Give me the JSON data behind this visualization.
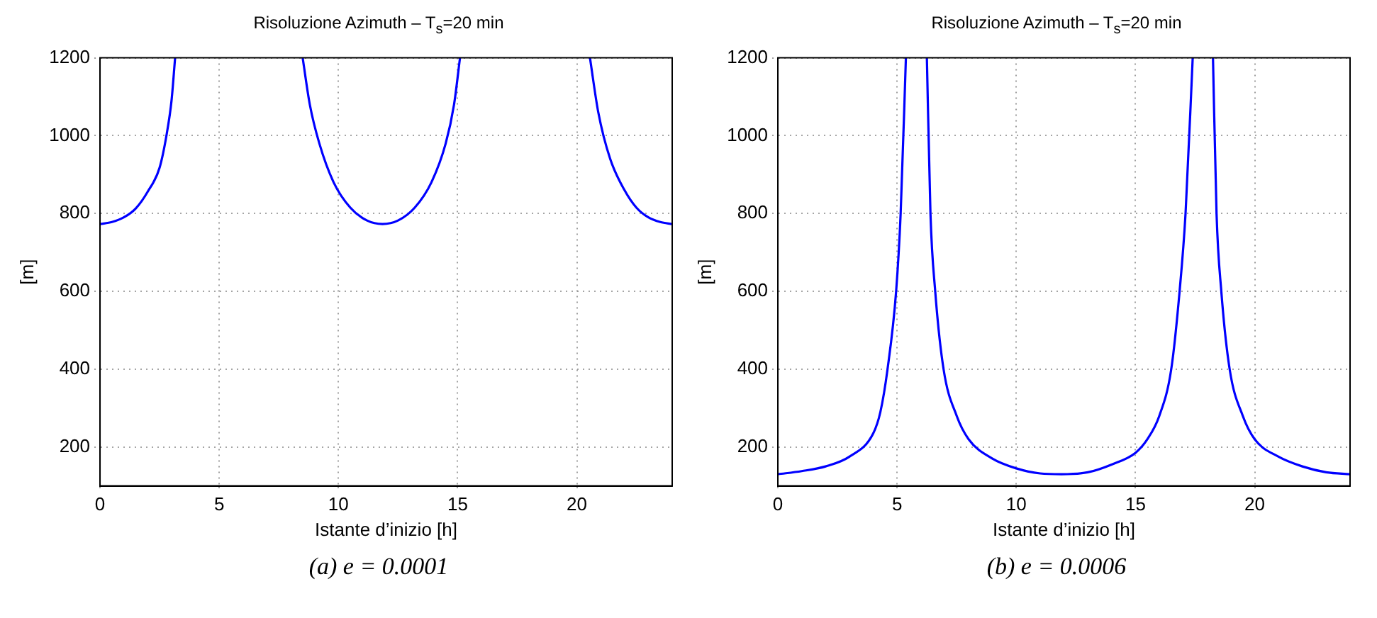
{
  "chart_data": [
    {
      "type": "line",
      "title": "Risoluzione Azimuth – T$_{s}$=20 min",
      "xlabel": "Istante d’inizio [h]",
      "ylabel": "[m]",
      "xlim": [
        0,
        24
      ],
      "xticks": [
        0,
        5,
        10,
        15,
        20
      ],
      "ylim": [
        100,
        1200
      ],
      "yticks": [
        200,
        400,
        600,
        800,
        1000,
        1200
      ],
      "grid": true,
      "legend": false,
      "marker": "none",
      "line_style": "solid",
      "annotations": [
        "(a) e = 0.0001"
      ],
      "series": [
        {
          "color": "#0000ff",
          "x": [
            0,
            0.5,
            1,
            1.5,
            2,
            2.5,
            2.8,
            3,
            3.15
          ],
          "values": [
            773,
            778,
            790,
            813,
            856,
            918,
            1005,
            1090,
            1200
          ]
        },
        {
          "color": "#0000ff",
          "x": [
            8.5,
            8.8,
            9.2,
            9.8,
            10.5,
            11.2,
            11.85,
            12.5,
            13.2,
            13.9,
            14.5,
            14.85,
            15.1
          ],
          "values": [
            1200,
            1080,
            980,
            880,
            815,
            782,
            773,
            782,
            815,
            880,
            980,
            1080,
            1200
          ]
        },
        {
          "color": "#0000ff",
          "x": [
            20.55,
            20.9,
            21.4,
            22,
            22.5,
            23,
            23.5,
            24
          ],
          "values": [
            1200,
            1060,
            940,
            860,
            815,
            790,
            778,
            773
          ]
        }
      ]
    },
    {
      "type": "line",
      "title": "Risoluzione Azimuth – T$_{s}$=20 min",
      "xlabel": "Istante d’inizio [h]",
      "ylabel": "[m]",
      "xlim": [
        0,
        24
      ],
      "xticks": [
        0,
        5,
        10,
        15,
        20
      ],
      "ylim": [
        100,
        1200
      ],
      "yticks": [
        200,
        400,
        600,
        800,
        1000,
        1200
      ],
      "grid": true,
      "legend": false,
      "marker": "none",
      "line_style": "solid",
      "annotations": [
        "(b) e = 0.0006"
      ],
      "series": [
        {
          "color": "#0000ff",
          "x": [
            0,
            1,
            2,
            3,
            4,
            4.3,
            4.6,
            4.96,
            5.15,
            5.37
          ],
          "values": [
            130,
            138,
            150,
            175,
            235,
            290,
            400,
            600,
            800,
            1200
          ]
        },
        {
          "color": "#0000ff",
          "x": [
            6.25,
            6.4,
            6.6,
            6.95,
            7.5,
            8,
            9,
            10,
            11,
            11.9,
            13,
            14,
            15,
            15.5,
            16,
            16.5,
            16.85,
            17.1,
            17.4
          ],
          "values": [
            1200,
            800,
            600,
            400,
            280,
            220,
            170,
            145,
            132,
            130,
            135,
            155,
            185,
            220,
            280,
            400,
            600,
            800,
            1200
          ]
        },
        {
          "color": "#0000ff",
          "x": [
            18.25,
            18.4,
            18.6,
            18.95,
            19.5,
            20,
            21,
            22,
            23,
            24
          ],
          "values": [
            1200,
            800,
            600,
            400,
            280,
            220,
            175,
            150,
            135,
            130
          ]
        }
      ]
    }
  ]
}
